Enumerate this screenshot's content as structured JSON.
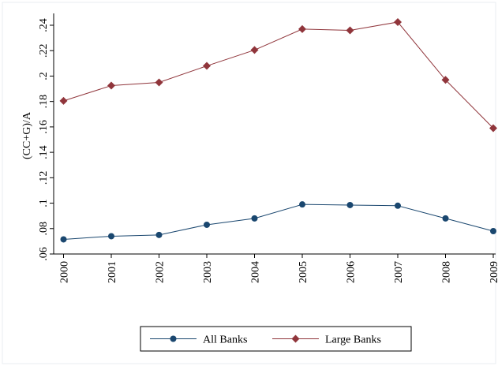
{
  "chart_data": {
    "type": "line",
    "title": "",
    "xlabel": "",
    "ylabel": "(CC+G)/A",
    "x": [
      "2000",
      "2001",
      "2002",
      "2003",
      "2004",
      "2005",
      "2006",
      "2007",
      "2008",
      "2009"
    ],
    "y_ticks": [
      ".06",
      ".08",
      ".1",
      ".12",
      ".14",
      ".16",
      ".18",
      ".2",
      ".22",
      ".24"
    ],
    "ylim": [
      0.055,
      0.25
    ],
    "grid": false,
    "legend_position": "bottom",
    "series": [
      {
        "name": "All Banks",
        "color": "#1a476f",
        "marker": "circle",
        "values": [
          0.0715,
          0.074,
          0.075,
          0.083,
          0.088,
          0.099,
          0.0985,
          0.098,
          0.088,
          0.078
        ]
      },
      {
        "name": "Large Banks",
        "color": "#90353b",
        "marker": "diamond",
        "values": [
          0.1805,
          0.1925,
          0.195,
          0.208,
          0.2205,
          0.237,
          0.236,
          0.2425,
          0.197,
          0.159
        ]
      }
    ]
  }
}
